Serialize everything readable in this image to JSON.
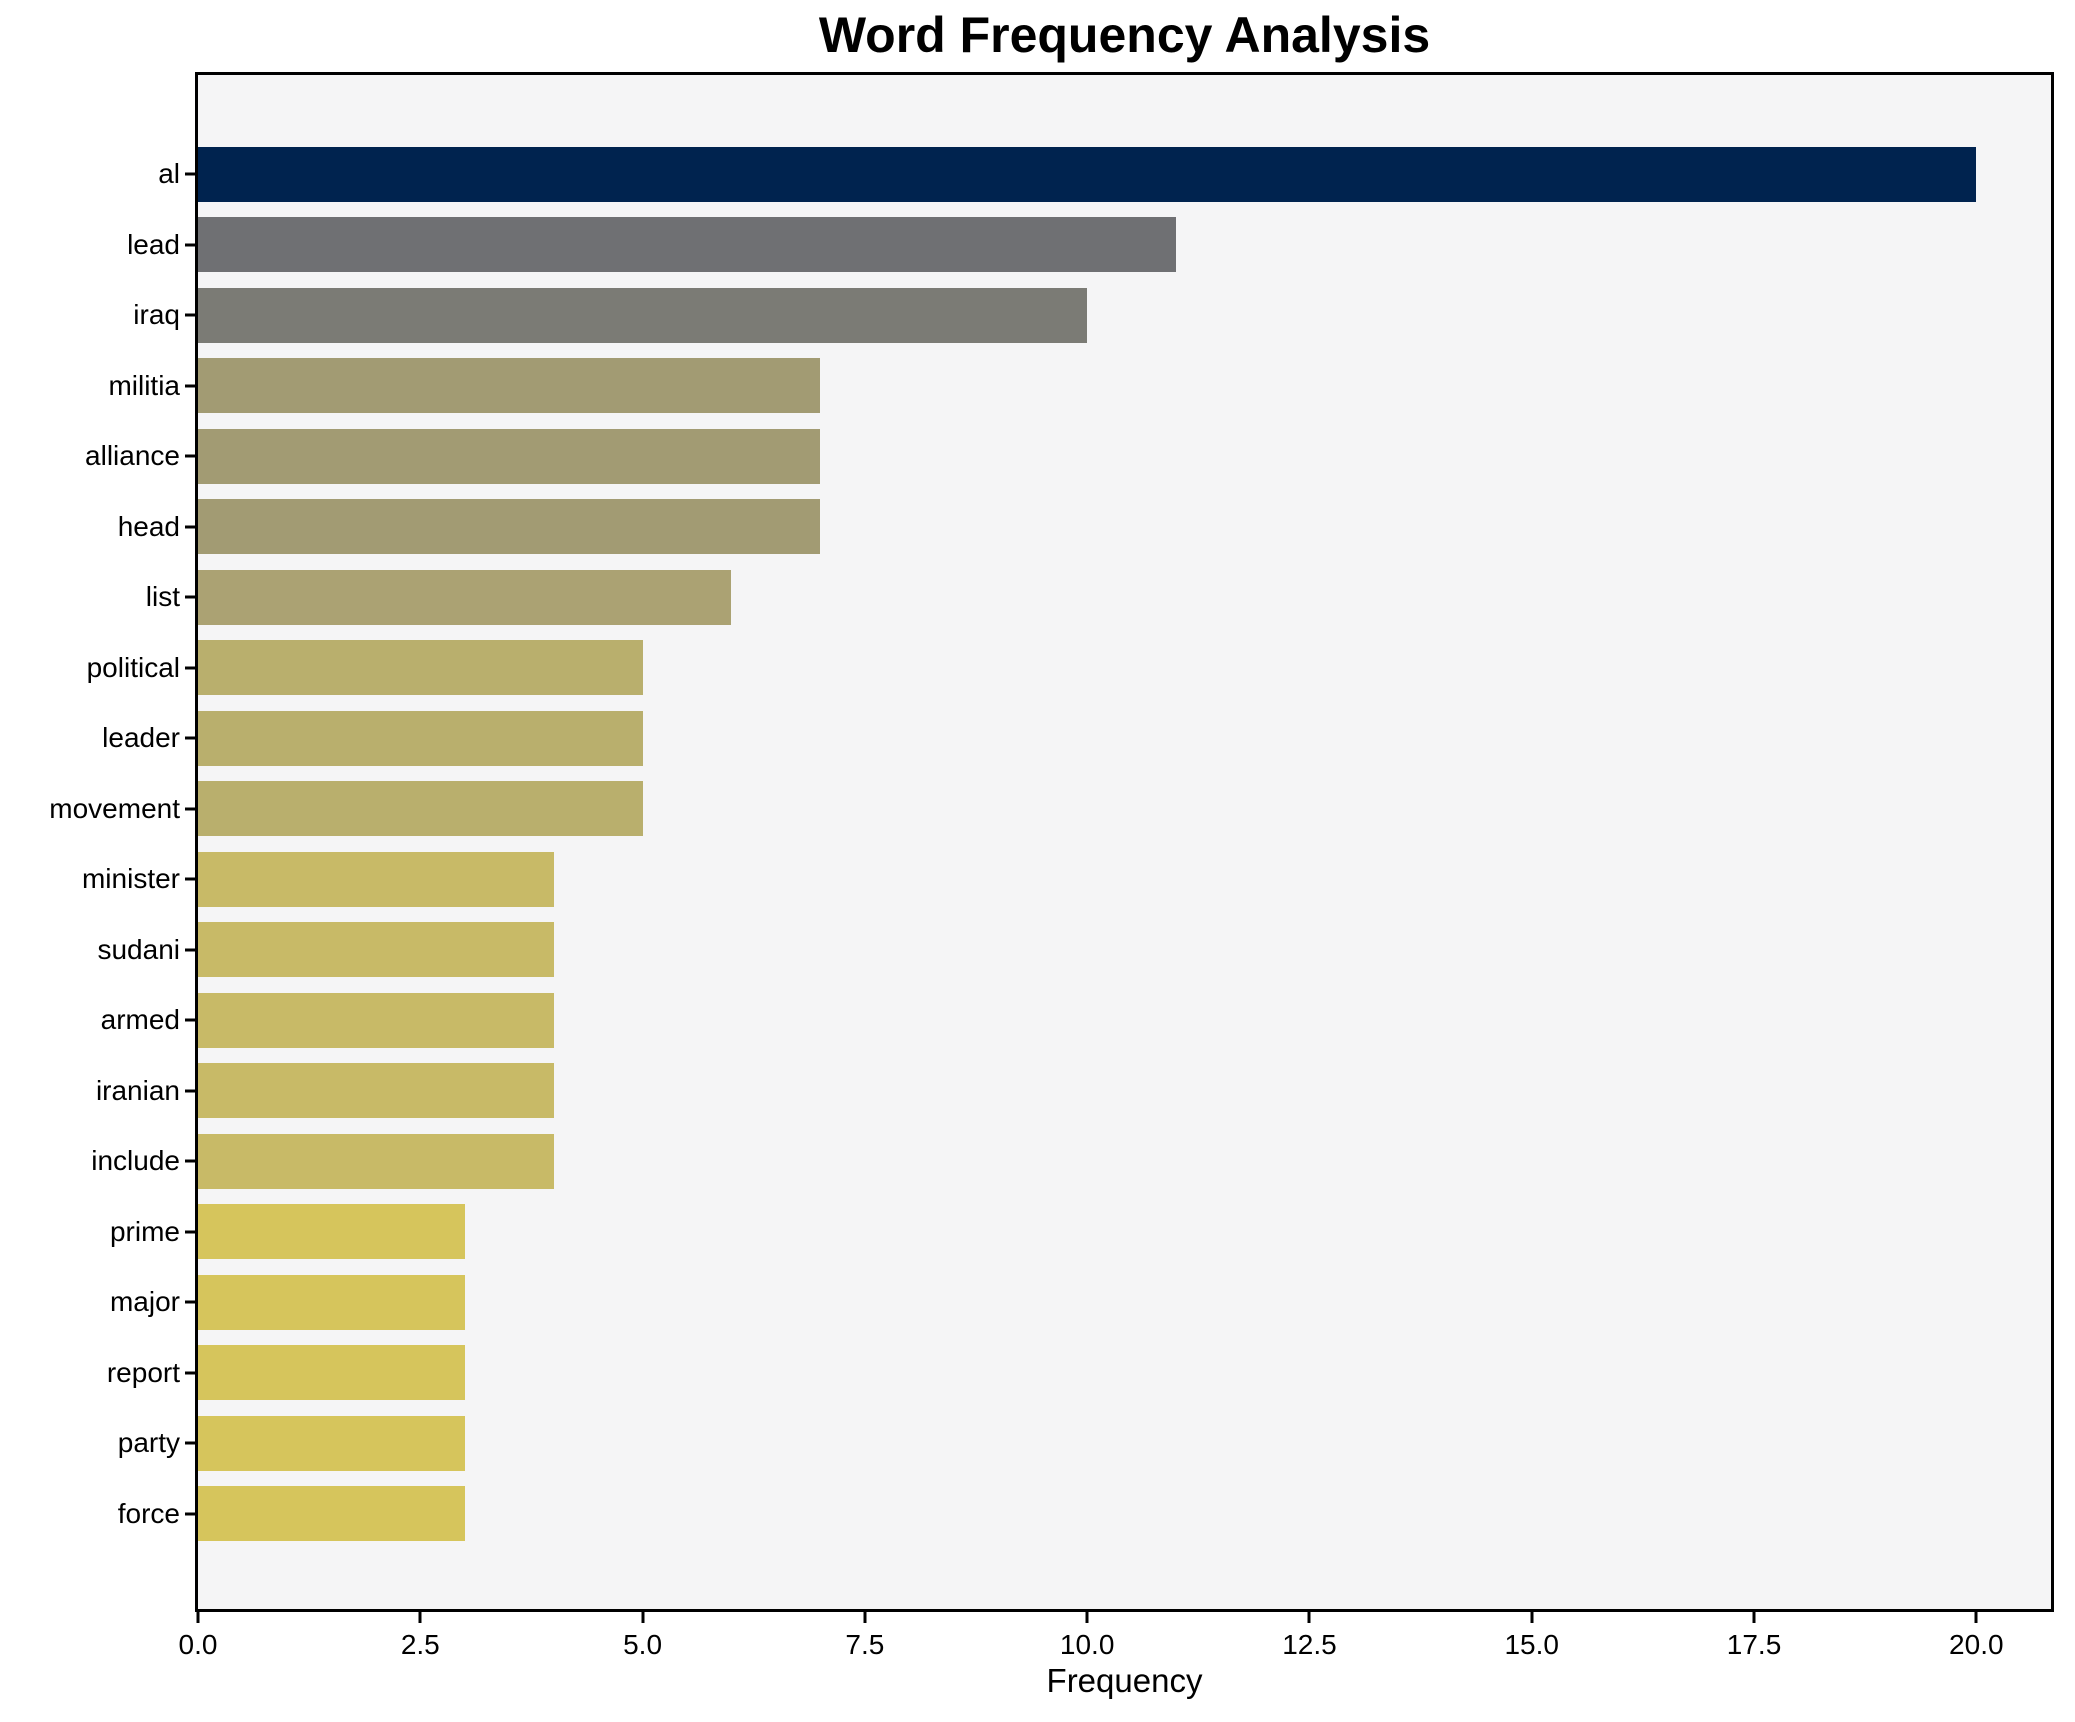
{
  "chart_data": {
    "type": "bar",
    "orientation": "horizontal",
    "title": "Word Frequency Analysis",
    "xlabel": "Frequency",
    "ylabel": "",
    "categories": [
      "al",
      "lead",
      "iraq",
      "militia",
      "alliance",
      "head",
      "list",
      "political",
      "leader",
      "movement",
      "minister",
      "sudani",
      "armed",
      "iranian",
      "include",
      "prime",
      "major",
      "report",
      "party",
      "force"
    ],
    "values": [
      20,
      11,
      10,
      7,
      7,
      7,
      6,
      5,
      5,
      5,
      4,
      4,
      4,
      4,
      4,
      3,
      3,
      3,
      3,
      3
    ],
    "bar_colors": [
      "#00234f",
      "#6f7073",
      "#7b7b75",
      "#a29b73",
      "#a29b73",
      "#a29b73",
      "#aba273",
      "#b9af6d",
      "#b9af6d",
      "#b9af6d",
      "#c8ba67",
      "#c8ba67",
      "#c8ba67",
      "#c8ba67",
      "#c8ba67",
      "#d6c55c",
      "#d6c55c",
      "#d6c55c",
      "#d6c55c",
      "#d6c55c"
    ],
    "xticks": [
      0,
      2.5,
      5,
      7.5,
      10,
      12.5,
      15,
      17.5,
      20
    ],
    "xtick_labels": [
      "0.0",
      "2.5",
      "5.0",
      "7.5",
      "10.0",
      "12.5",
      "15.0",
      "17.5",
      "20.0"
    ],
    "xlim": [
      0,
      20.84
    ],
    "grid": false,
    "legend": "none",
    "plot_background": "#f5f5f6",
    "figure_background": "#ffffff",
    "colormap_hint": "cividis (dark navy = high frequency, yellow = low frequency)"
  }
}
